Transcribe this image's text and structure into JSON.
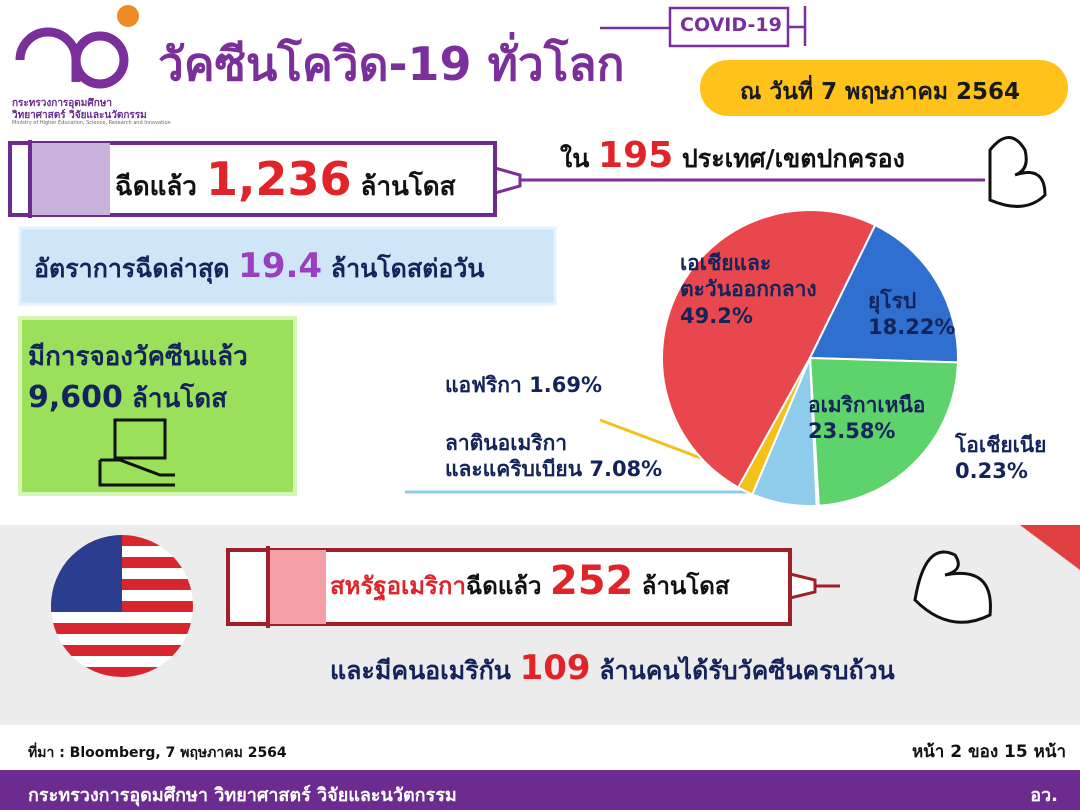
{
  "header": {
    "ministry_line1": "กระทรวงการอุดมศึกษา",
    "ministry_line2": "วิทยาศาสตร์ วิจัยและนวัตกรรม",
    "ministry_en": "Ministry of Higher Education, Science, Research and Innovation",
    "title": "วัคซีนโควิด-19 ทั่วโลก",
    "badge": "COVID-19",
    "date": "ณ วันที่ 7 พฤษภาคม 2564"
  },
  "total": {
    "prefix": "ฉีดแล้ว",
    "value": "1,236",
    "suffix": "ล้านโดส"
  },
  "countries": {
    "prefix": "ใน",
    "value": "195",
    "suffix": "ประเทศ/เขตปกครอง"
  },
  "rate": {
    "prefix": "อัตราการฉีดล่าสุด",
    "value": "19.4",
    "suffix": "ล้านโดสต่อวัน"
  },
  "reserved": {
    "line1": "มีการจองวัคซีนแล้ว",
    "value": "9,600",
    "suffix": "ล้านโดส"
  },
  "chart_data": {
    "type": "pie",
    "categories": [
      "เอเชียและ\nตะวันออกกลาง",
      "ยุโรป",
      "อเมริกาเหนือ",
      "โอเชียเนีย",
      "ลาตินอเมริกา\nและแคริบเบียน",
      "แอฟริกา"
    ],
    "values": [
      49.2,
      18.22,
      23.58,
      0.23,
      7.08,
      1.69
    ],
    "value_labels": [
      "49.2%",
      "18.22%",
      "23.58%",
      "0.23%",
      "7.08%",
      "1.69%"
    ],
    "colors": [
      "#e8484d",
      "#2f6fcf",
      "#5ed36b",
      "#4a4a4a",
      "#8fcbea",
      "#f2c21b"
    ]
  },
  "usa": {
    "name": "สหรัฐอเมริกา",
    "mid": "ฉีดแล้ว",
    "value": "252",
    "suffix": "ล้านโดส",
    "full_prefix": "และมีคนอเมริกัน",
    "full_value": "109",
    "full_suffix": "ล้านคนได้รับวัคซีนครบถ้วน"
  },
  "footer": {
    "source": "ที่มา : Bloomberg, 7 พฤษภาคม 2564",
    "page": "หน้า 2 ของ 15 หน้า",
    "ministry": "กระทรวงการอุดมศึกษา วิทยาศาสตร์ วิจัยและนวัตกรรม",
    "abbr": "อว."
  }
}
